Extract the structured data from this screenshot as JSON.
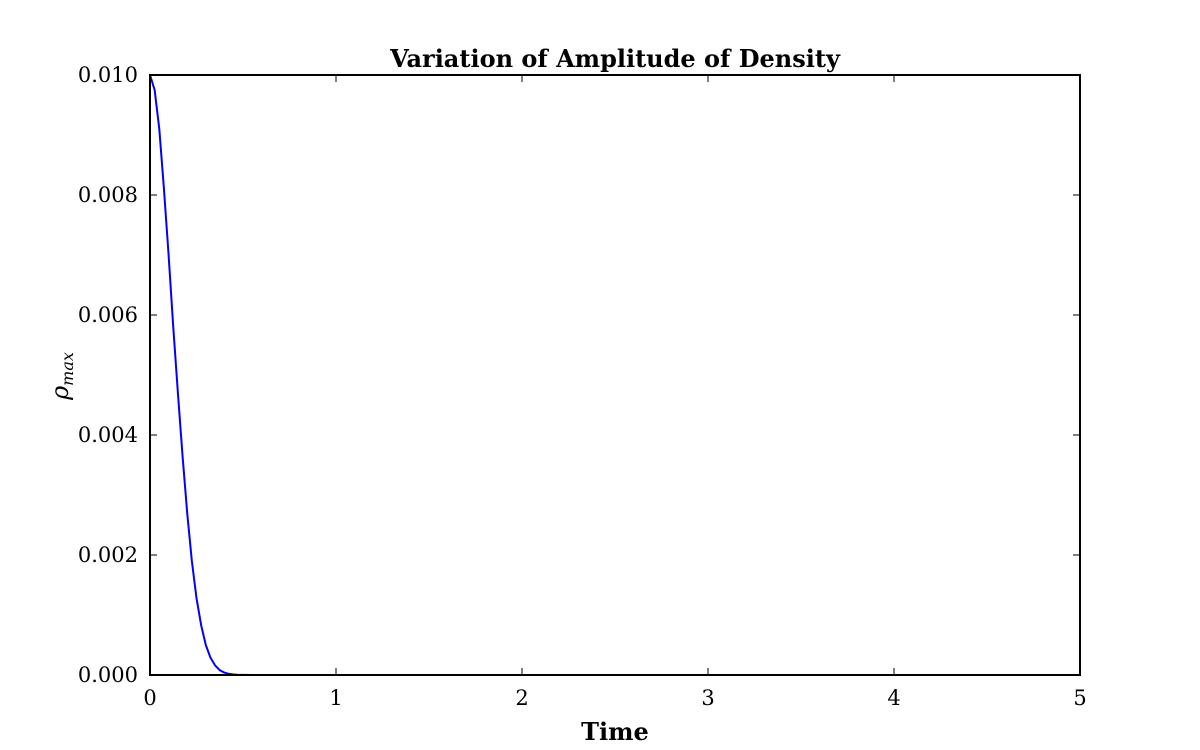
{
  "chart_data": {
    "type": "line",
    "title": "Variation of Amplitude of Density",
    "xlabel": "Time",
    "ylabel": {
      "symbol": "ρ",
      "subscript": "max"
    },
    "xlim": [
      0,
      5
    ],
    "ylim": [
      0,
      0.01
    ],
    "xticks": [
      0,
      1,
      2,
      3,
      4,
      5
    ],
    "xtick_labels": [
      "0",
      "1",
      "2",
      "3",
      "4",
      "5"
    ],
    "yticks": [
      0,
      0.002,
      0.004,
      0.006,
      0.008,
      0.01
    ],
    "ytick_labels": [
      "0.000",
      "0.002",
      "0.004",
      "0.006",
      "0.008",
      "0.010"
    ],
    "grid": false,
    "line_color": "#0000ff",
    "series": [
      {
        "x": [
          0,
          0.025,
          0.05,
          0.075,
          0.1,
          0.125,
          0.15,
          0.175,
          0.2,
          0.225,
          0.25,
          0.275,
          0.3,
          0.325,
          0.35,
          0.375,
          0.4,
          0.425,
          0.45,
          0.475,
          0.5,
          0.55,
          0.6,
          0.65,
          0.7,
          0.8,
          1.0,
          1.5,
          2.0,
          2.5,
          3.0,
          3.5,
          4.0,
          4.5,
          5.0
        ],
        "values": [
          0.01,
          0.00975,
          0.0091,
          0.0081,
          0.007,
          0.0058,
          0.0047,
          0.00365,
          0.0027,
          0.0019,
          0.00128,
          0.00083,
          0.0005,
          0.00029,
          0.00016,
          8e-05,
          4e-05,
          1.8e-05,
          8e-06,
          3e-06,
          1.2e-06,
          2e-07,
          0.0,
          0.0,
          0.0,
          0.0,
          0.0,
          0.0,
          0.0,
          0.0,
          0.0,
          0.0,
          0.0,
          0.0,
          0.0
        ]
      }
    ]
  }
}
